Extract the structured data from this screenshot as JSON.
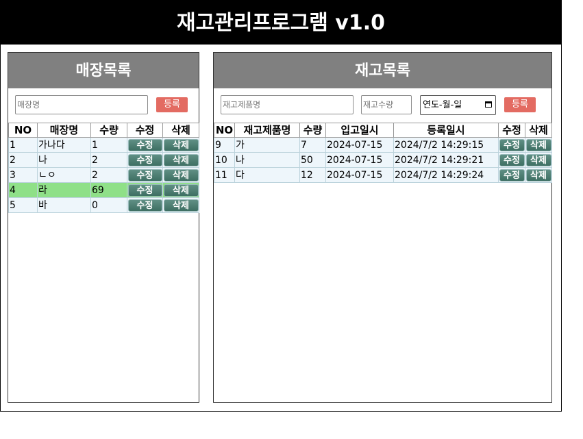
{
  "app": {
    "title": "재고관리프로그램 v1.0"
  },
  "store_panel": {
    "title": "매장목록",
    "name_placeholder": "매장명",
    "register_label": "등록",
    "columns": [
      "NO",
      "매장명",
      "수량",
      "수정",
      "삭제"
    ],
    "rows": [
      {
        "no": "1",
        "name": "가나다",
        "qty": "1",
        "edit": "수정",
        "del": "삭제",
        "highlight": false
      },
      {
        "no": "2",
        "name": "나",
        "qty": "2",
        "edit": "수정",
        "del": "삭제",
        "highlight": false
      },
      {
        "no": "3",
        "name": "ㄴㅇ",
        "qty": "2",
        "edit": "수정",
        "del": "삭제",
        "highlight": false
      },
      {
        "no": "4",
        "name": "라",
        "qty": "69",
        "edit": "수정",
        "del": "삭제",
        "highlight": true
      },
      {
        "no": "5",
        "name": "바",
        "qty": "0",
        "edit": "수정",
        "del": "삭제",
        "highlight": false
      }
    ],
    "highlight_color": "#8fe088"
  },
  "stock_panel": {
    "title": "재고목록",
    "product_placeholder": "재고제품명",
    "qty_placeholder": "재고수량",
    "date_placeholder": "연도-월-일",
    "register_label": "등록",
    "columns": [
      "NO",
      "재고제품명",
      "수량",
      "입고일시",
      "등록일시",
      "수정",
      "삭제"
    ],
    "rows": [
      {
        "no": "9",
        "product": "가",
        "qty": "7",
        "in_date": "2024-07-15",
        "reg_date": "2024/7/2 14:29:15",
        "edit": "수정",
        "del": "삭제"
      },
      {
        "no": "10",
        "product": "나",
        "qty": "50",
        "in_date": "2024-07-15",
        "reg_date": "2024/7/2 14:29:21",
        "edit": "수정",
        "del": "삭제"
      },
      {
        "no": "11",
        "product": "다",
        "qty": "12",
        "in_date": "2024-07-15",
        "reg_date": "2024/7/2 14:29:24",
        "edit": "수정",
        "del": "삭제"
      }
    ]
  },
  "colors": {
    "header_bg": "#000000",
    "panel_head_bg": "#808080",
    "register_button": "#e36b62",
    "action_button": "#4f7f73",
    "row_bg": "#eef6fb"
  }
}
